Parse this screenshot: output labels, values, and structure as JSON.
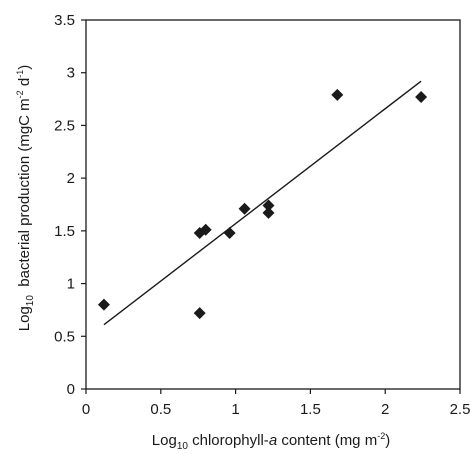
{
  "chart_data": {
    "type": "scatter",
    "title": "",
    "xlabel": {
      "prefix": "Log",
      "subscript": "10",
      "text_before_italic": " chlorophyll-",
      "italic": "a",
      "text_after_italic": " content (mg m",
      "superscript": "-2",
      "suffix": ")"
    },
    "ylabel": {
      "prefix": "Log",
      "subscript": "10",
      "text_mid": "  bacterial production (mgC m",
      "superscript1": "-2",
      "text_mid2": " d",
      "superscript2": "-1",
      "suffix": ")"
    },
    "xlim": [
      0,
      2.5
    ],
    "ylim": [
      0,
      3.5
    ],
    "xticks": [
      "0",
      "0.5",
      "1",
      "1.5",
      "2",
      "2.5"
    ],
    "yticks": [
      "0",
      "0.5",
      "1",
      "1.5",
      "2",
      "2.5",
      "3",
      "3.5"
    ],
    "xtick_values": [
      0,
      0.5,
      1,
      1.5,
      2,
      2.5
    ],
    "ytick_values": [
      0,
      0.5,
      1,
      1.5,
      2,
      2.5,
      3,
      3.5
    ],
    "grid": false,
    "legend": "none",
    "marker": "diamond",
    "marker_color": "#1a1a1a",
    "points": [
      {
        "x": 0.12,
        "y": 0.8
      },
      {
        "x": 0.76,
        "y": 0.72
      },
      {
        "x": 0.76,
        "y": 1.48
      },
      {
        "x": 0.8,
        "y": 1.51
      },
      {
        "x": 0.96,
        "y": 1.48
      },
      {
        "x": 1.06,
        "y": 1.71
      },
      {
        "x": 1.22,
        "y": 1.74
      },
      {
        "x": 1.22,
        "y": 1.67
      },
      {
        "x": 1.68,
        "y": 2.79
      },
      {
        "x": 2.24,
        "y": 2.77
      }
    ],
    "fit_line": {
      "x": [
        0.12,
        2.24
      ],
      "y": [
        0.61,
        2.92
      ]
    }
  }
}
